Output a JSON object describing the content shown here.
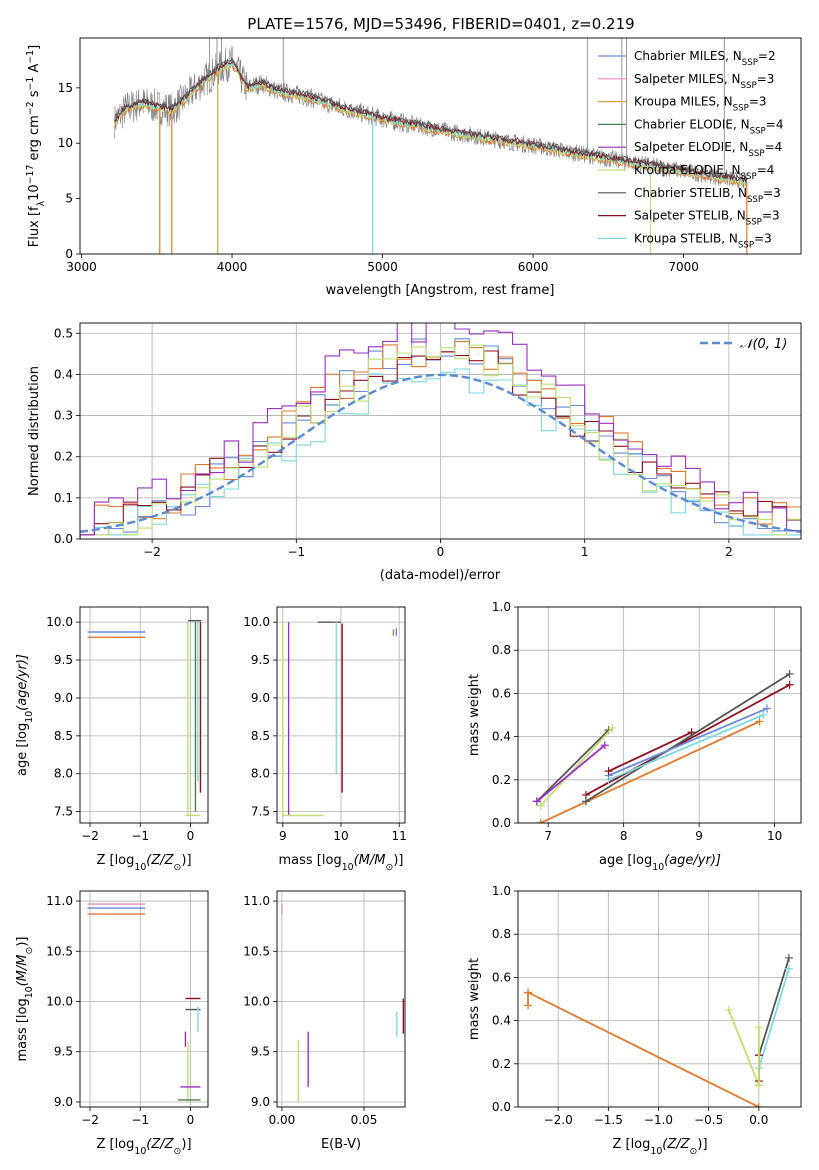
{
  "figure_title": "PLATE=1576, MJD=53496, FIBERID=0401, z=0.219",
  "colors": {
    "chabrier_miles": "#6a8ad8",
    "salpeter_miles": "#e78ac3",
    "kroupa_miles": "#d9a441",
    "chabrier_elodie": "#4d7d4d",
    "salpeter_elodie": "#9b2fc0",
    "kroupa_elodie": "#bfe070",
    "chabrier_stelib": "#555555",
    "salpeter_stelib": "#8c1020",
    "kroupa_stelib": "#7fd8e0",
    "orange_model": "#e07a30",
    "gaussian": "#5a8ad0",
    "data_flux": "#808080"
  },
  "chart_data": [
    {
      "id": "spectrum",
      "type": "line",
      "xlabel": "wavelength [Angstrom, rest frame]",
      "ylabel": "Flux [f",
      "ylabel_parts": [
        "Flux [f",
        "λ",
        "10",
        "−17",
        " erg cm",
        "−2",
        " s",
        "−1",
        " A",
        "−1",
        "]"
      ],
      "xlim": [
        2990,
        7780
      ],
      "ylim": [
        0,
        19.5
      ],
      "xticks": [
        3000,
        4000,
        5000,
        6000,
        7000
      ],
      "yticks": [
        0,
        5,
        10,
        15
      ],
      "grid": false,
      "legend_position": "top-right",
      "legend": [
        {
          "label": "Chabrier MILES, N",
          "sub": "SSP",
          "tail": "=2",
          "color_key": "chabrier_miles"
        },
        {
          "label": "Salpeter MILES, N",
          "sub": "SSP",
          "tail": "=3",
          "color_key": "salpeter_miles"
        },
        {
          "label": "Kroupa MILES, N",
          "sub": "SSP",
          "tail": "=3",
          "color_key": "kroupa_miles"
        },
        {
          "label": "Chabrier ELODIE, N",
          "sub": "SSP",
          "tail": "=4",
          "color_key": "chabrier_elodie"
        },
        {
          "label": "Salpeter ELODIE, N",
          "sub": "SSP",
          "tail": "=4",
          "color_key": "salpeter_elodie"
        },
        {
          "label": "Kroupa ELODIE, N",
          "sub": "SSP",
          "tail": "=4",
          "color_key": "kroupa_elodie"
        },
        {
          "label": "Chabrier STELIB, N",
          "sub": "SSP",
          "tail": "=3",
          "color_key": "chabrier_stelib"
        },
        {
          "label": "Salpeter STELIB, N",
          "sub": "SSP",
          "tail": "=3",
          "color_key": "salpeter_stelib"
        },
        {
          "label": "Kroupa STELIB, N",
          "sub": "SSP",
          "tail": "=3",
          "color_key": "kroupa_stelib"
        }
      ],
      "continuum": {
        "x": [
          3220,
          3300,
          3400,
          3500,
          3600,
          3700,
          3800,
          3850,
          3900,
          3950,
          4000,
          4100,
          4200,
          4300,
          4500,
          4700,
          5000,
          5500,
          6000,
          6500,
          7000,
          7300,
          7420
        ],
        "y": [
          12.0,
          13.2,
          13.6,
          13.3,
          13.0,
          14.2,
          15.5,
          16.0,
          16.6,
          17.0,
          17.3,
          15.0,
          15.4,
          14.7,
          14.2,
          13.3,
          12.2,
          10.9,
          9.8,
          8.6,
          7.5,
          6.8,
          6.5
        ]
      },
      "model_drops": [
        {
          "x": 3520,
          "color_key": "orange_model"
        },
        {
          "x": 3600,
          "color_key": "orange_model"
        },
        {
          "x": 3905,
          "color_key": "kroupa_miles"
        },
        {
          "x": 4935,
          "color_key": "kroupa_stelib"
        },
        {
          "x": 6780,
          "color_key": "kroupa_elodie"
        },
        {
          "x": 7420,
          "color_key": "orange_model"
        }
      ]
    },
    {
      "id": "residuals",
      "type": "histogram",
      "xlabel": "(data-model)/error",
      "ylabel": "Normed distribution",
      "xlim": [
        -2.5,
        2.5
      ],
      "ylim": [
        0,
        0.525
      ],
      "xticks": [
        -2,
        -1,
        0,
        1,
        2
      ],
      "yticks": [
        0.0,
        0.1,
        0.2,
        0.3,
        0.4,
        0.5
      ],
      "grid": true,
      "legend_position": "top-right",
      "gaussian_label": "𝒩(0, 1)",
      "bin_width": 0.1,
      "series_colors": [
        "chabrier_miles",
        "orange_model",
        "kroupa_stelib",
        "salpeter_stelib",
        "kroupa_elodie",
        "salpeter_elodie"
      ],
      "peaks": [
        0.47,
        0.44,
        0.41,
        0.42,
        0.45,
        0.5
      ]
    },
    {
      "id": "age_vs_Z",
      "type": "scatter",
      "xlabel": "Z [log",
      "xlabel_parts": [
        "Z [log",
        "10",
        "(Z/Z",
        "⊙",
        ")]"
      ],
      "ylabel_parts": [
        "age  [log",
        "10",
        "(age/yr)]"
      ],
      "xlim": [
        -2.2,
        0.35
      ],
      "ylim": [
        7.35,
        10.2
      ],
      "xticks": [
        -2,
        -1,
        0
      ],
      "yticks": [
        7.5,
        8.0,
        8.5,
        9.0,
        9.5,
        10.0
      ],
      "grid": true,
      "segments": [
        {
          "x1": -2.05,
          "x2": -0.9,
          "y1": 9.87,
          "y2": 9.87,
          "color_key": "chabrier_miles"
        },
        {
          "x1": -2.05,
          "x2": -0.9,
          "y1": 9.8,
          "y2": 9.8,
          "color_key": "orange_model"
        },
        {
          "x1": -0.05,
          "x2": -0.05,
          "y1": 7.45,
          "y2": 10.0,
          "color_key": "kroupa_elodie"
        },
        {
          "x1": -0.1,
          "x2": 0.2,
          "y1": 7.45,
          "y2": 7.45,
          "color_key": "kroupa_elodie"
        },
        {
          "x1": -0.05,
          "x2": 0.22,
          "y1": 10.02,
          "y2": 10.02,
          "color_key": "chabrier_stelib"
        },
        {
          "x1": 0.15,
          "x2": 0.15,
          "y1": 7.9,
          "y2": 10.0,
          "color_key": "kroupa_stelib"
        },
        {
          "x1": 0.2,
          "x2": 0.2,
          "y1": 7.75,
          "y2": 10.0,
          "color_key": "salpeter_stelib"
        },
        {
          "x1": 0.1,
          "x2": 0.1,
          "y1": 7.5,
          "y2": 10.0,
          "color_key": "chabrier_elodie"
        }
      ]
    },
    {
      "id": "age_vs_mass",
      "type": "scatter",
      "xlabel_parts": [
        "mass [log",
        "10",
        "(M/M",
        "⊙",
        ")]"
      ],
      "xlim": [
        8.9,
        11.1
      ],
      "ylim": [
        7.35,
        10.2
      ],
      "xticks": [
        9,
        10,
        11
      ],
      "yticks": [
        7.5,
        8.0,
        8.5,
        9.0,
        9.5,
        10.0
      ],
      "grid": true,
      "segments": [
        {
          "x1": 9.0,
          "x2": 9.0,
          "y1": 7.45,
          "y2": 10.0,
          "color_key": "kroupa_elodie"
        },
        {
          "x1": 9.1,
          "x2": 9.1,
          "y1": 7.45,
          "y2": 10.0,
          "color_key": "salpeter_elodie"
        },
        {
          "x1": 9.0,
          "x2": 9.7,
          "y1": 7.45,
          "y2": 7.45,
          "color_key": "kroupa_elodie"
        },
        {
          "x1": 9.6,
          "x2": 10.0,
          "y1": 10.0,
          "y2": 10.0,
          "color_key": "chabrier_stelib"
        },
        {
          "x1": 9.92,
          "x2": 9.92,
          "y1": 8.0,
          "y2": 10.0,
          "color_key": "kroupa_stelib"
        },
        {
          "x1": 10.02,
          "x2": 10.02,
          "y1": 7.75,
          "y2": 9.98,
          "color_key": "salpeter_stelib"
        },
        {
          "x1": 10.9,
          "x2": 10.9,
          "y1": 9.82,
          "y2": 9.9,
          "color_key": "orange_model"
        },
        {
          "x1": 10.95,
          "x2": 10.95,
          "y1": 9.82,
          "y2": 9.92,
          "color_key": "chabrier_miles"
        }
      ]
    },
    {
      "id": "weight_vs_age",
      "type": "line",
      "xlabel_parts": [
        "age  [log",
        "10",
        "(age/yr)]"
      ],
      "ylabel": "mass weight",
      "xlim": [
        6.6,
        10.35
      ],
      "ylim": [
        0,
        1.0
      ],
      "xticks": [
        7,
        8,
        9,
        10
      ],
      "yticks": [
        0.0,
        0.2,
        0.4,
        0.6,
        0.8,
        1.0
      ],
      "grid": true,
      "series": [
        {
          "color_key": "chabrier_stelib",
          "x": [
            6.85,
            7.8
          ],
          "y": [
            0.1,
            0.43
          ]
        },
        {
          "color_key": "kroupa_elodie",
          "x": [
            6.9,
            7.85
          ],
          "y": [
            0.08,
            0.44
          ]
        },
        {
          "color_key": "salpeter_elodie",
          "x": [
            6.85,
            7.75
          ],
          "y": [
            0.1,
            0.36
          ]
        },
        {
          "color_key": "orange_model",
          "x": [
            6.9,
            9.8
          ],
          "y": [
            0.0,
            0.47
          ]
        },
        {
          "color_key": "salpeter_stelib",
          "x": [
            7.5,
            10.2
          ],
          "y": [
            0.13,
            0.64
          ]
        },
        {
          "color_key": "chabrier_stelib",
          "x": [
            7.5,
            10.2
          ],
          "y": [
            0.1,
            0.69
          ]
        },
        {
          "color_key": "kroupa_stelib",
          "x": [
            7.8,
            9.85
          ],
          "y": [
            0.2,
            0.5
          ]
        },
        {
          "color_key": "chabrier_miles",
          "x": [
            7.8,
            9.9
          ],
          "y": [
            0.22,
            0.53
          ]
        },
        {
          "color_key": "salpeter_stelib",
          "x": [
            7.8,
            8.9
          ],
          "y": [
            0.24,
            0.42
          ]
        }
      ]
    },
    {
      "id": "mass_vs_Z",
      "type": "scatter",
      "xlabel_parts": [
        "Z [log",
        "10",
        "(Z/Z",
        "⊙",
        ")]"
      ],
      "ylabel_parts": [
        "mass [log",
        "10",
        "(M/M",
        "⊙",
        ")]"
      ],
      "xlim": [
        -2.2,
        0.35
      ],
      "ylim": [
        8.95,
        11.1
      ],
      "xticks": [
        -2,
        -1,
        0
      ],
      "yticks": [
        9.0,
        9.5,
        10.0,
        10.5,
        11.0
      ],
      "grid": true,
      "segments": [
        {
          "x1": -2.05,
          "x2": -0.9,
          "y1": 10.97,
          "y2": 10.97,
          "color_key": "salpeter_miles"
        },
        {
          "x1": -2.05,
          "x2": -0.9,
          "y1": 10.93,
          "y2": 10.93,
          "color_key": "chabrier_miles"
        },
        {
          "x1": -2.05,
          "x2": -0.9,
          "y1": 10.87,
          "y2": 10.87,
          "color_key": "orange_model"
        },
        {
          "x1": -0.1,
          "x2": 0.2,
          "y1": 10.03,
          "y2": 10.03,
          "color_key": "salpeter_stelib"
        },
        {
          "x1": -0.1,
          "x2": 0.2,
          "y1": 9.92,
          "y2": 9.92,
          "color_key": "chabrier_stelib"
        },
        {
          "x1": 0.15,
          "x2": 0.15,
          "y1": 9.7,
          "y2": 9.95,
          "color_key": "kroupa_stelib"
        },
        {
          "x1": -0.1,
          "x2": -0.1,
          "y1": 9.55,
          "y2": 9.7,
          "color_key": "salpeter_elodie"
        },
        {
          "x1": -0.05,
          "x2": -0.05,
          "y1": 9.0,
          "y2": 9.6,
          "color_key": "kroupa_elodie"
        },
        {
          "x1": -0.2,
          "x2": 0.2,
          "y1": 9.15,
          "y2": 9.15,
          "color_key": "salpeter_elodie"
        },
        {
          "x1": -0.25,
          "x2": 0.2,
          "y1": 9.02,
          "y2": 9.02,
          "color_key": "chabrier_elodie"
        }
      ]
    },
    {
      "id": "mass_vs_ebv",
      "type": "scatter",
      "xlabel": "E(B-V)",
      "xlim": [
        -0.003,
        0.075
      ],
      "ylim": [
        8.95,
        11.1
      ],
      "xticks": [
        0.0,
        0.05
      ],
      "xtick_labels": [
        "0.00",
        "0.05"
      ],
      "yticks": [
        9.0,
        9.5,
        10.0,
        10.5,
        11.0
      ],
      "grid": true,
      "segments": [
        {
          "x1": 0.0,
          "x2": 0.0,
          "y1": 10.87,
          "y2": 10.97,
          "color_key": "salpeter_miles"
        },
        {
          "x1": 0.01,
          "x2": 0.01,
          "y1": 9.0,
          "y2": 9.62,
          "color_key": "kroupa_elodie"
        },
        {
          "x1": 0.016,
          "x2": 0.016,
          "y1": 9.15,
          "y2": 9.7,
          "color_key": "salpeter_elodie"
        },
        {
          "x1": 0.07,
          "x2": 0.07,
          "y1": 9.65,
          "y2": 9.9,
          "color_key": "kroupa_stelib"
        },
        {
          "x1": 0.074,
          "x2": 0.074,
          "y1": 9.68,
          "y2": 10.03,
          "color_key": "salpeter_stelib"
        }
      ]
    },
    {
      "id": "weight_vs_Z",
      "type": "line",
      "xlabel_parts": [
        "Z [log",
        "10",
        "(Z/Z",
        "⊙",
        ")]"
      ],
      "ylabel": "mass weight",
      "xlim": [
        -2.4,
        0.42
      ],
      "ylim": [
        0,
        1.0
      ],
      "xticks": [
        -2.0,
        -1.5,
        -1.0,
        -0.5,
        0.0
      ],
      "xtick_labels": [
        "−2.0",
        "−1.5",
        "−1.0",
        "−0.5",
        "0.0"
      ],
      "yticks": [
        0.0,
        0.2,
        0.4,
        0.6,
        0.8,
        1.0
      ],
      "grid": true,
      "series": [
        {
          "color_key": "orange_model",
          "x": [
            -2.3,
            0.0
          ],
          "y": [
            0.53,
            0.0
          ]
        },
        {
          "color_key": "orange_model",
          "x": [
            -2.3,
            -2.3
          ],
          "y": [
            0.47,
            0.53
          ]
        },
        {
          "color_key": "kroupa_elodie",
          "x": [
            -0.3,
            0.0
          ],
          "y": [
            0.45,
            0.1
          ]
        },
        {
          "color_key": "chabrier_stelib",
          "x": [
            0.0,
            0.3
          ],
          "y": [
            0.24,
            0.69
          ]
        },
        {
          "color_key": "kroupa_stelib",
          "x": [
            0.0,
            0.3
          ],
          "y": [
            0.18,
            0.64
          ]
        },
        {
          "color_key": "salpeter_stelib",
          "x": [
            0.0,
            0.0
          ],
          "y": [
            0.12,
            0.24
          ]
        },
        {
          "color_key": "kroupa_elodie",
          "x": [
            0.0,
            0.0
          ],
          "y": [
            0.1,
            0.37
          ]
        }
      ]
    }
  ]
}
